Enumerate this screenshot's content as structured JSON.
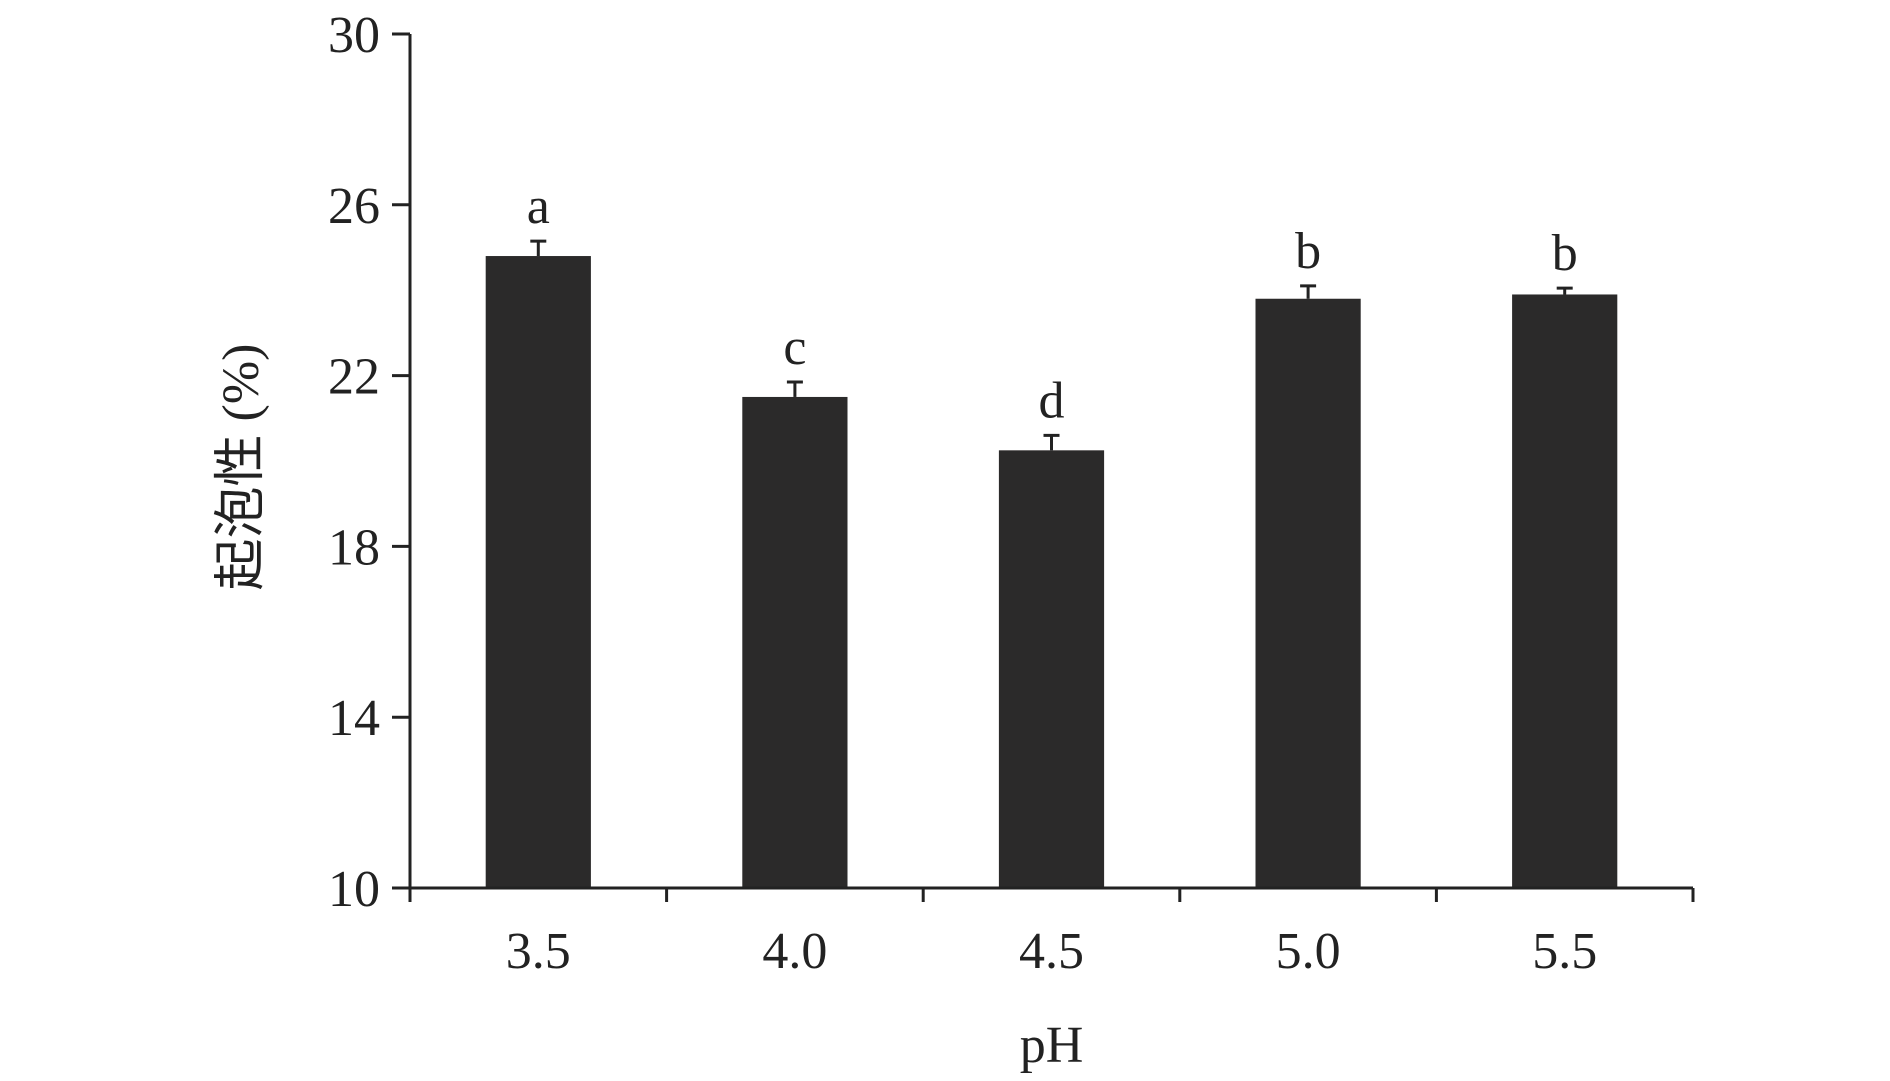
{
  "chart_data": {
    "type": "bar",
    "categories": [
      "3.5",
      "4.0",
      "4.5",
      "5.0",
      "5.5"
    ],
    "values": [
      24.8,
      21.5,
      20.25,
      23.8,
      23.9
    ],
    "errors": [
      0.35,
      0.35,
      0.35,
      0.3,
      0.15
    ],
    "significance_labels": [
      "a",
      "c",
      "d",
      "b",
      "b"
    ],
    "title": "",
    "xlabel": "pH",
    "ylabel": "起泡性 (%)",
    "ylim": [
      10,
      30
    ],
    "yticks": [
      10,
      14,
      18,
      22,
      26,
      30
    ],
    "ytick_labels": [
      "10",
      "14",
      "18",
      "22",
      "26",
      "30"
    ],
    "grid": false,
    "bar_color": "#2b2a2a",
    "axis_color": "#222222"
  }
}
